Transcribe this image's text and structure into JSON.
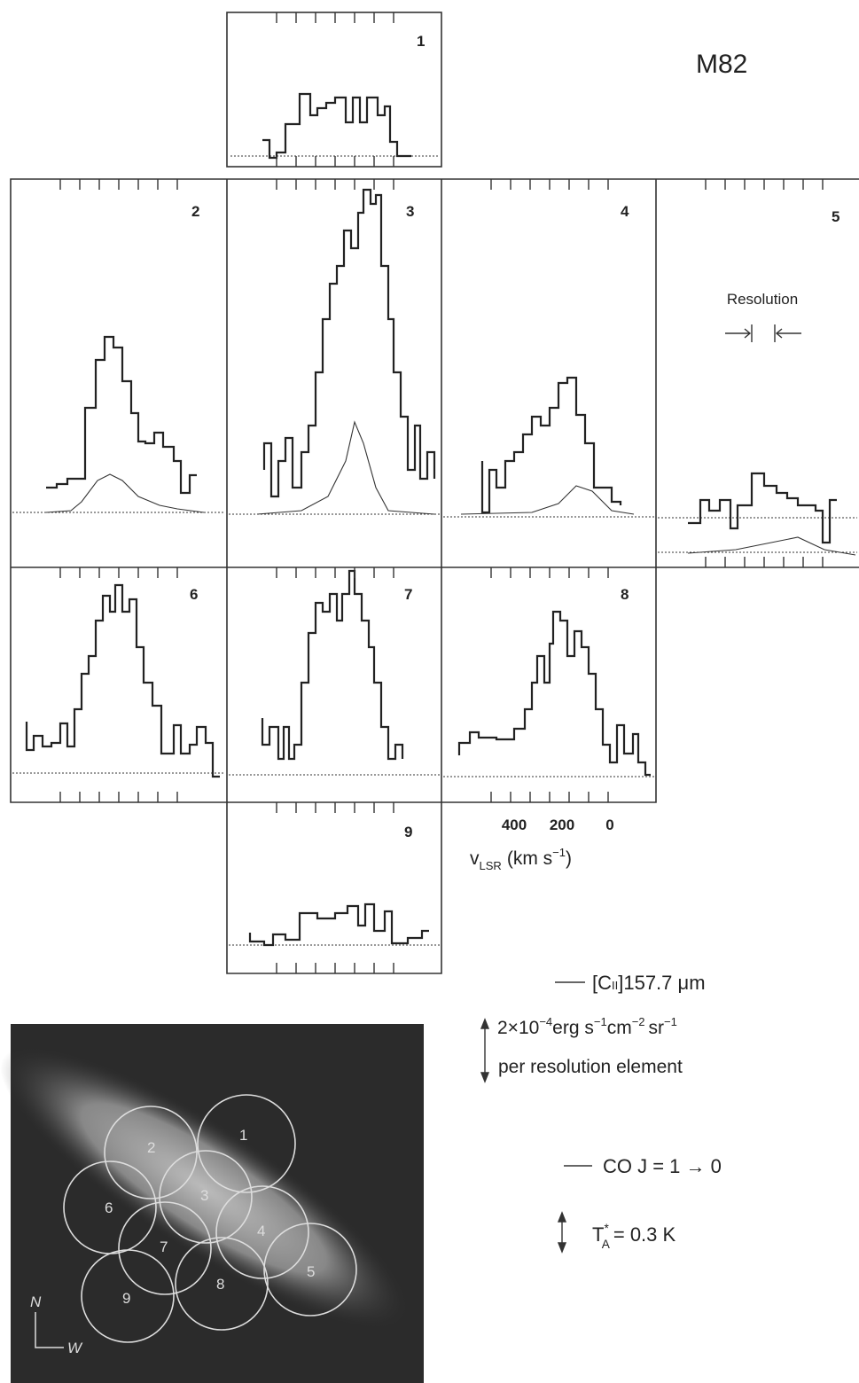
{
  "title": "M82",
  "panels": [
    "1",
    "2",
    "3",
    "4",
    "5",
    "6",
    "7",
    "8",
    "9"
  ],
  "resolution": "Resolution",
  "axis": {
    "ticks": [
      "400",
      "200",
      "0"
    ],
    "label_main": "v",
    "label_sub": "LSR",
    "label_unit": "(km s",
    "label_sup": "−1",
    "label_close": ")"
  },
  "legend": {
    "cii": {
      "name_bracket": "[C",
      "name_ion": "II",
      "name_rest": "]157.7 μm",
      "scale": [
        "2×10",
        "−4",
        "erg s",
        "−1",
        "cm",
        "−2",
        "sr",
        "−1"
      ],
      "per": "per resolution element"
    },
    "co": {
      "name": "CO J = 1 → 0",
      "scale_main": "T",
      "scale_sup": "*",
      "scale_sub": "A",
      "scale_rest": "= 0.3 K"
    }
  },
  "image": {
    "labels": [
      "1",
      "2",
      "3",
      "4",
      "5",
      "6",
      "7",
      "8",
      "9"
    ],
    "north": "N",
    "west": "W"
  }
}
